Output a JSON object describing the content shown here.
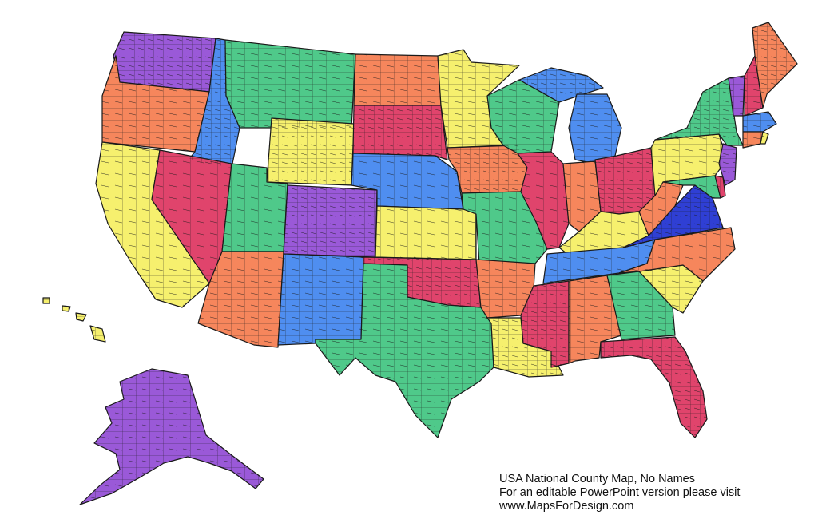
{
  "caption": {
    "line1": "USA National County Map, No Names",
    "line2": "For an editable PowerPoint version please visit",
    "line3": "www.MapsForDesign.com"
  },
  "palette": {
    "purple": "#9a59d8",
    "green": "#4fc98a",
    "orange": "#f6865c",
    "yellow": "#f6f06e",
    "blue": "#4f8ef0",
    "red": "#e0446c",
    "navy": "#2f3fd4"
  },
  "outline_color": "#1a1a1a"
}
